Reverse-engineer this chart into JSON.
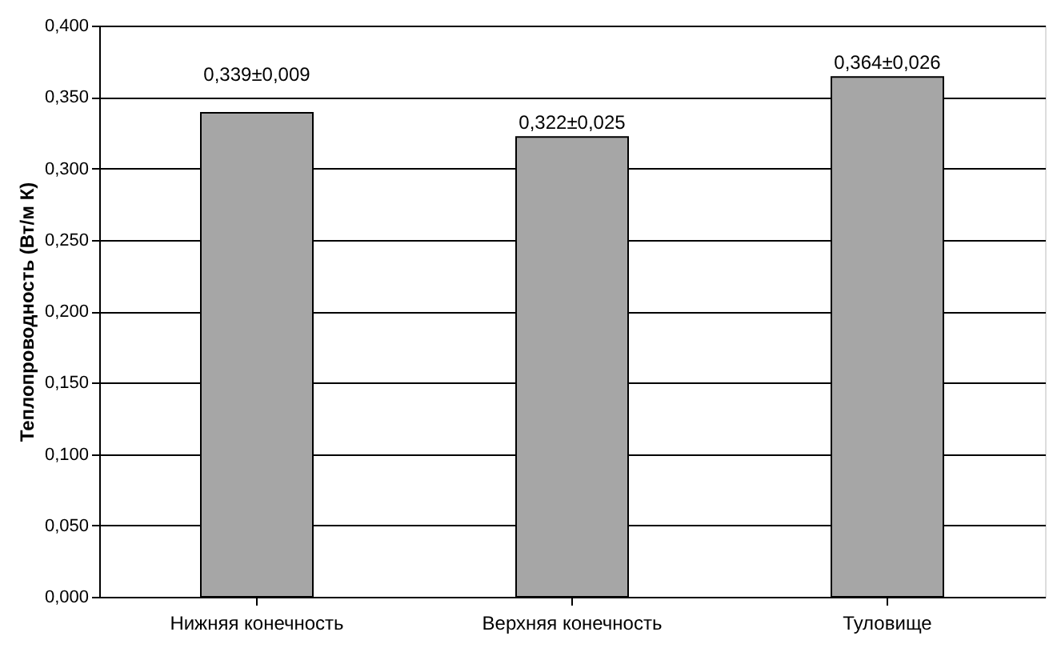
{
  "chart_data": {
    "type": "bar",
    "ylabel": "Теплопроводность (Вт/м К)",
    "categories": [
      "Нижняя конечность",
      "Верхняя конечность",
      "Туловище"
    ],
    "values": [
      0.339,
      0.322,
      0.364
    ],
    "value_labels": [
      "0,339±0,009",
      "0,322±0,025",
      "0,364±0,026"
    ],
    "color": "#a6a6a6",
    "ylim": [
      0,
      0.4
    ],
    "yticks": [
      {
        "value": 0,
        "label": "0,000"
      },
      {
        "value": 0.05,
        "label": "0,050"
      },
      {
        "value": 0.1,
        "label": "0,100"
      },
      {
        "value": 0.15,
        "label": "0,150"
      },
      {
        "value": 0.2,
        "label": "0,200"
      },
      {
        "value": 0.25,
        "label": "0,250"
      },
      {
        "value": 0.3,
        "label": "0,300"
      },
      {
        "value": 0.35,
        "label": "0,350"
      },
      {
        "value": 0.4,
        "label": "0,400"
      }
    ],
    "grid": "y"
  }
}
